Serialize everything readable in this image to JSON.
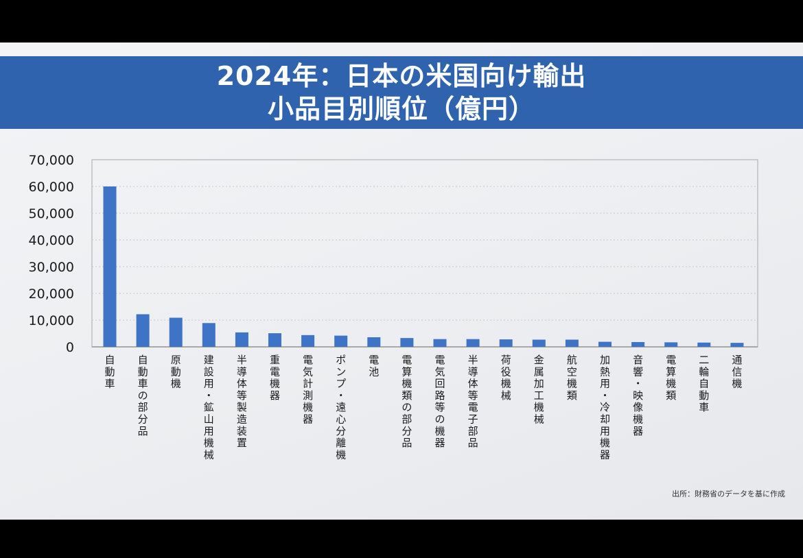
{
  "title": {
    "line1": "2024年：日本の米国向け輸出",
    "line2": "小品目別順位（億円）"
  },
  "source_note": "出所：財務省のデータを基に作成",
  "colors": {
    "bar": "#3e73c6",
    "banner": "#2f63ad",
    "grid": "#c8c8c8"
  },
  "chart_data": {
    "type": "bar",
    "title": "2024年：日本の米国向け輸出 小品目別順位（億円）",
    "xlabel": "",
    "ylabel": "",
    "ylim": [
      0,
      70000
    ],
    "yticks": [
      0,
      10000,
      20000,
      30000,
      40000,
      50000,
      60000,
      70000
    ],
    "ytick_labels": [
      "0",
      "10,000",
      "20,000",
      "30,000",
      "40,000",
      "50,000",
      "60,000",
      "70,000"
    ],
    "grid": true,
    "categories": [
      "自動車",
      "自動車の部分品",
      "原動機",
      "建設用・鉱山用機械",
      "半導体等製造装置",
      "重電機器",
      "電気計測機器",
      "ポンプ・遠心分離機",
      "電池",
      "電算機類の部分品",
      "電気回路等の機器",
      "半導体等電子部品",
      "荷役機械",
      "金属加工機械",
      "航空機類",
      "加熱用・冷却用機器",
      "音響・映像機器",
      "電算機類",
      "二輪自動車",
      "通信機"
    ],
    "values": [
      60000,
      12200,
      10900,
      8900,
      5400,
      5100,
      4400,
      4200,
      3600,
      3300,
      2900,
      2900,
      2800,
      2700,
      2700,
      1900,
      1800,
      1700,
      1600,
      1500
    ]
  }
}
